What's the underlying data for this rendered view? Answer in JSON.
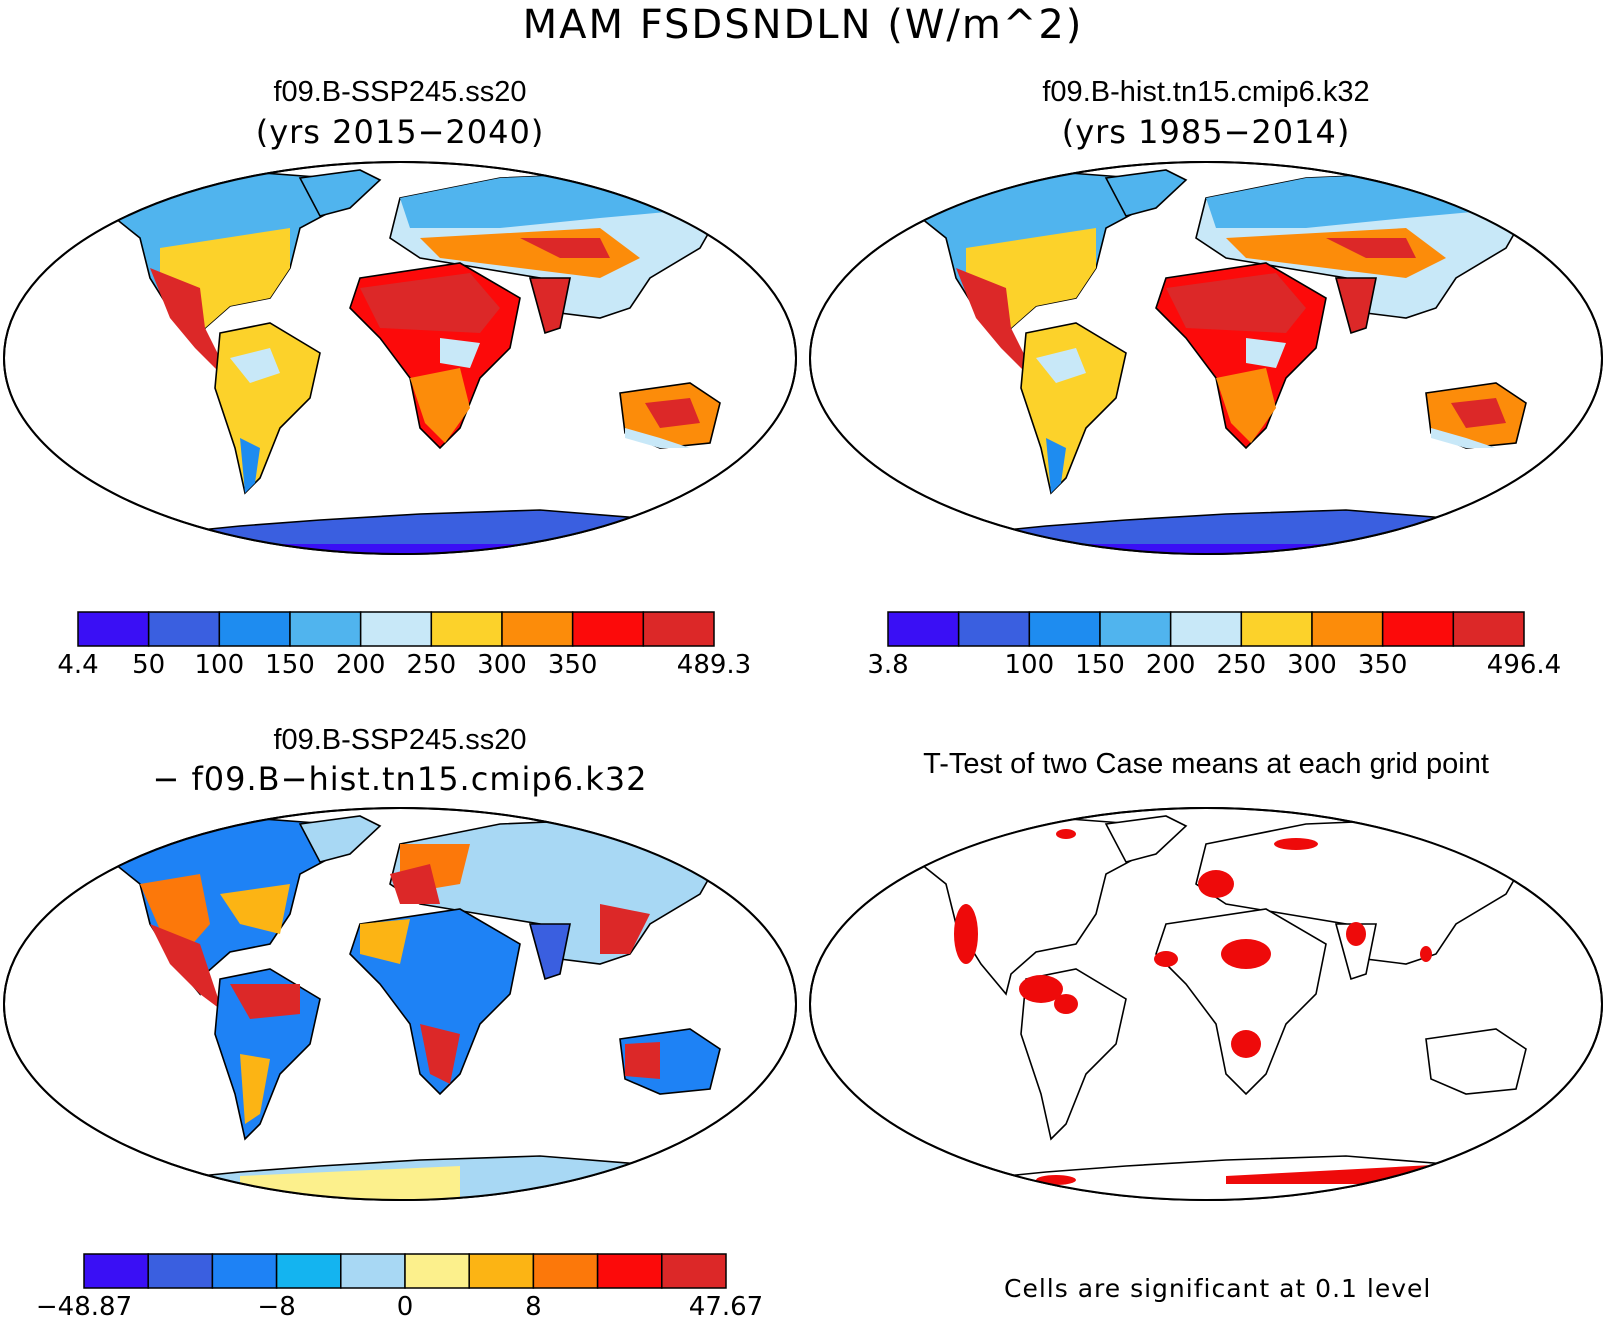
{
  "main_title": "MAM FSDSNDLN (W/m^2)",
  "panels": [
    {
      "title": "f09.B-SSP245.ss20",
      "subtitle": "(yrs 2015−2040)"
    },
    {
      "title": "f09.B-hist.tn15.cmip6.k32",
      "subtitle": "(yrs 1985−2014)"
    },
    {
      "title": "f09.B-SSP245.ss20",
      "subtitle": "− f09.B−hist.tn15.cmip6.k32"
    },
    {
      "title": "T-Test of two Case means at each grid point",
      "subtitle": ""
    }
  ],
  "colorbars": [
    {
      "colors": [
        "#3a0ff5",
        "#3a5fe0",
        "#1e8cf0",
        "#50b4ee",
        "#c8e8f8",
        "#fcd22a",
        "#fc8c0a",
        "#fc0a0a",
        "#dc2828"
      ],
      "labels": [
        "4.4",
        "50",
        "100",
        "150",
        "200",
        "250",
        "300",
        "350",
        "",
        "489.3"
      ]
    },
    {
      "colors": [
        "#3a0ff5",
        "#3a5fe0",
        "#1e8cf0",
        "#50b4ee",
        "#c8e8f8",
        "#fcd22a",
        "#fc8c0a",
        "#fc0a0a",
        "#dc2828"
      ],
      "labels": [
        "3.8",
        "",
        "100",
        "150",
        "200",
        "250",
        "300",
        "350",
        "",
        "496.4"
      ]
    },
    {
      "colors": [
        "#3a0ff5",
        "#3a5fe0",
        "#1e82f5",
        "#14b4f0",
        "#a8d8f4",
        "#fcf08c",
        "#fcb414",
        "#fc780a",
        "#fc0a0a",
        "#dc2828"
      ],
      "labels": [
        "−48.87",
        "",
        "",
        "−8",
        "",
        "0",
        "",
        "8",
        "",
        "",
        "47.67"
      ]
    }
  ],
  "significance_note": "Cells are significant at 0.1 level",
  "significance_color": "#ee0a0a",
  "map_projection": "robinson"
}
